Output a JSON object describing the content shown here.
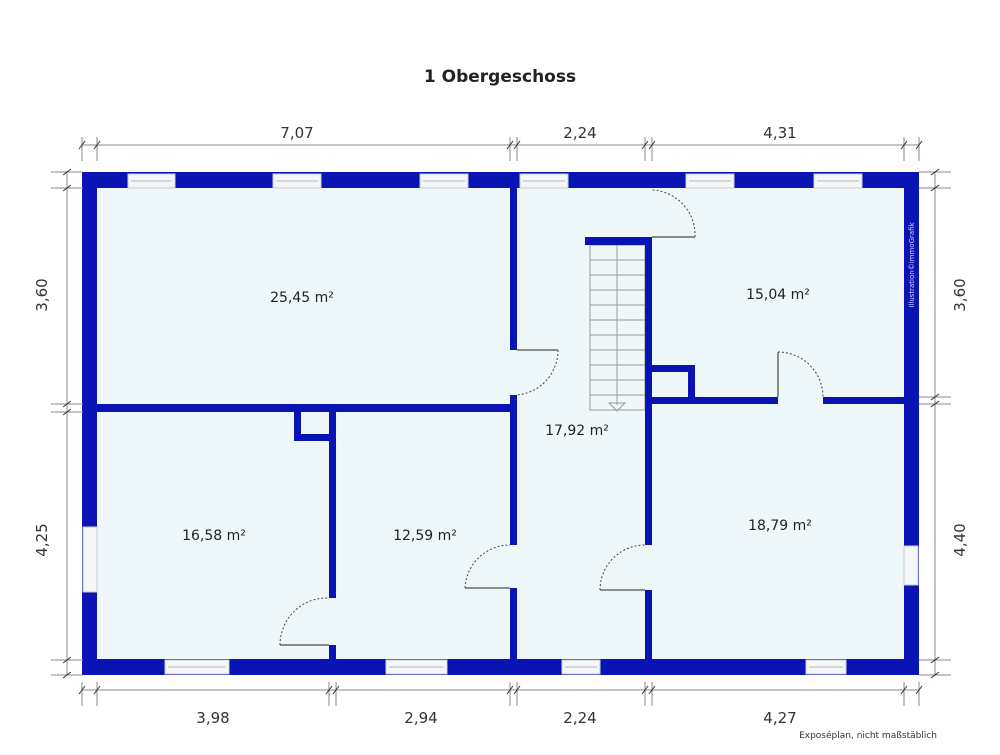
{
  "title": "1 Obergeschoss",
  "caption": "Exposéplan, nicht maßstäblich",
  "watermark": "Illustration©immoGrafik",
  "colors": {
    "wall": "#0a14b4",
    "floor": "#eef8fb"
  },
  "dimensions": {
    "top": [
      "7,07",
      "2,24",
      "4,31"
    ],
    "bottom": [
      "3,98",
      "2,94",
      "2,24",
      "4,27"
    ],
    "left": [
      "3,60",
      "4,25"
    ],
    "right": [
      "3,60",
      "4,40"
    ]
  },
  "rooms": [
    {
      "area": "25,45 m²"
    },
    {
      "area": "15,04 m²"
    },
    {
      "area": "17,92 m²"
    },
    {
      "area": "16,58 m²"
    },
    {
      "area": "12,59 m²"
    },
    {
      "area": "18,79 m²"
    }
  ]
}
